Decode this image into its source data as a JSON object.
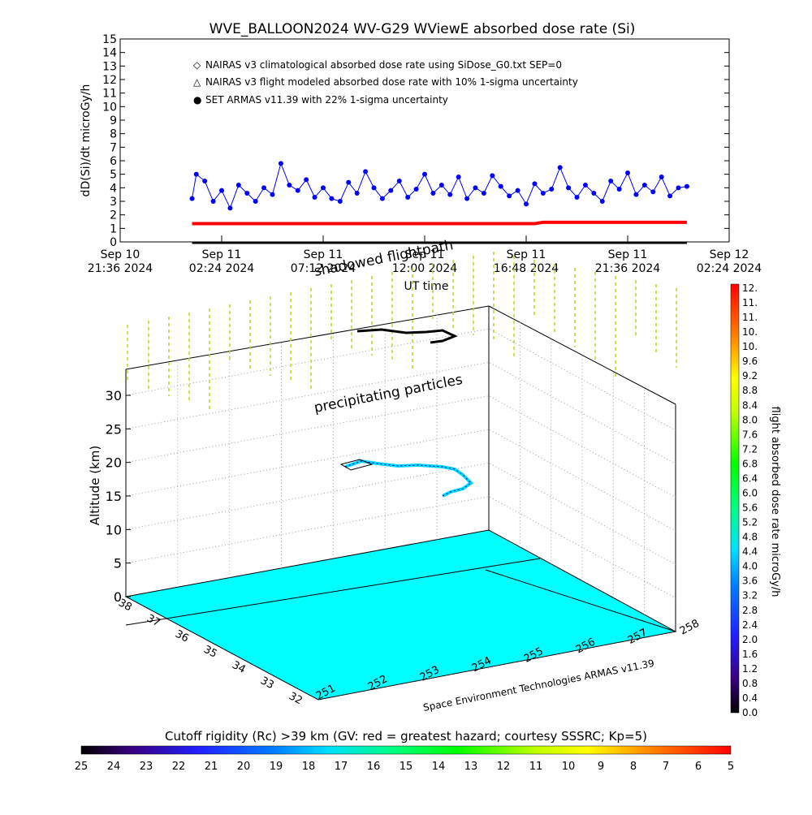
{
  "chart_data": [
    {
      "type": "scatter",
      "title": "WVE_BALLOON2024 WV-G29 WViewE absorbed dose rate (Si)",
      "xlabel": "UT time",
      "ylabel": "dD(Si)/dt microGy/h",
      "ylim": [
        0,
        15
      ],
      "yticks": [
        "0",
        "1",
        "2",
        "3",
        "4",
        "5",
        "6",
        "7",
        "8",
        "9",
        "10",
        "11",
        "12",
        "13",
        "14",
        "15"
      ],
      "xlim_hours_from_first_tick": [
        0,
        28.8
      ],
      "xticks": [
        {
          "line1": "Sep 10",
          "line2": "21:36 2024",
          "h": 0
        },
        {
          "line1": "Sep 11",
          "line2": "02:24 2024",
          "h": 4.8
        },
        {
          "line1": "Sep 11",
          "line2": "07:12 2024",
          "h": 9.6
        },
        {
          "line1": "Sep 11",
          "line2": "12:00 2024",
          "h": 14.4
        },
        {
          "line1": "Sep 11",
          "line2": "16:48 2024",
          "h": 19.2
        },
        {
          "line1": "Sep 11",
          "line2": "21:36 2024",
          "h": 24.0
        },
        {
          "line1": "Sep 12",
          "line2": "02:24 2024",
          "h": 28.8
        }
      ],
      "grid": false,
      "legend_position": "top-left",
      "legend": [
        {
          "symbol": "◇",
          "color": "#ff0000",
          "label": "NAIRAS v3 climatological absorbed dose rate using SiDose_G0.txt SEP=0"
        },
        {
          "symbol": "△",
          "color": "#000000",
          "label": "NAIRAS v3 flight modeled absorbed dose rate with 10% 1-sigma uncertainty"
        },
        {
          "symbol": "●",
          "color": "#0000ff",
          "label": "SET ARMAS v11.39 with 22% 1-sigma uncertainty"
        }
      ],
      "series": [
        {
          "name": "NAIRAS v3 climatological absorbed dose rate using SiDose_G0.txt SEP=0",
          "color": "#ff0000",
          "x": [
            3.4,
            6,
            9,
            12,
            15,
            18,
            19.6,
            20,
            21,
            24,
            26.8
          ],
          "y": [
            1.35,
            1.35,
            1.35,
            1.35,
            1.35,
            1.35,
            1.35,
            1.45,
            1.45,
            1.45,
            1.45
          ]
        },
        {
          "name": "NAIRAS v3 flight modeled absorbed dose rate with 10% 1-sigma uncertainty",
          "color": "#000000",
          "x": [
            3.4,
            26.8
          ],
          "y": [
            0,
            0
          ]
        },
        {
          "name": "SET ARMAS v11.39 with 22% 1-sigma uncertainty",
          "color": "#0000ff",
          "x": [
            3.4,
            3.6,
            4.0,
            4.4,
            4.8,
            5.2,
            5.6,
            6.0,
            6.4,
            6.8,
            7.2,
            7.6,
            8.0,
            8.4,
            8.8,
            9.2,
            9.6,
            10.0,
            10.4,
            10.8,
            11.2,
            11.6,
            12.0,
            12.4,
            12.8,
            13.2,
            13.6,
            14.0,
            14.4,
            14.8,
            15.2,
            15.6,
            16.0,
            16.4,
            16.8,
            17.2,
            17.6,
            18.0,
            18.4,
            18.8,
            19.2,
            19.6,
            20.0,
            20.4,
            20.8,
            21.2,
            21.6,
            22.0,
            22.4,
            22.8,
            23.2,
            23.6,
            24.0,
            24.4,
            24.8,
            25.2,
            25.6,
            26.0,
            26.4,
            26.8
          ],
          "y": [
            3.2,
            5.0,
            4.5,
            3.0,
            3.8,
            2.5,
            4.2,
            3.6,
            3.0,
            4.0,
            3.5,
            5.8,
            4.2,
            3.8,
            4.6,
            3.3,
            4.0,
            3.2,
            3.0,
            4.4,
            3.6,
            5.2,
            4.0,
            3.2,
            3.8,
            4.5,
            3.3,
            3.9,
            5.0,
            3.6,
            4.2,
            3.5,
            4.8,
            3.2,
            4.0,
            3.6,
            4.9,
            4.1,
            3.4,
            3.8,
            2.8,
            4.3,
            3.6,
            3.9,
            5.5,
            4.0,
            3.3,
            4.2,
            3.6,
            3.0,
            4.5,
            3.9,
            5.1,
            3.5,
            4.2,
            3.7,
            4.8,
            3.4,
            4.0,
            4.1
          ]
        }
      ],
      "annotations": [
        "shadowed flightpath"
      ]
    },
    {
      "type": "scatter",
      "ylabel": "Altitude (km)",
      "zlim": [
        0,
        30
      ],
      "zticks": [
        "0",
        "5",
        "10",
        "15",
        "20",
        "25",
        "30"
      ],
      "lat_ticks": [
        "38",
        "37",
        "36",
        "35",
        "34",
        "33",
        "32"
      ],
      "lon_ticks": [
        "251",
        "252",
        "253",
        "254",
        "255",
        "256",
        "257",
        "258"
      ],
      "annotations": [
        "precipitating particles"
      ],
      "credit": "Space Environment Technologies ARMAS v11.39",
      "colorbar_right": {
        "label": "flight absorbed dose rate microGy/h",
        "ticks": [
          "12.",
          "11.",
          "11.",
          "10.",
          "10.",
          "9.6",
          "9.2",
          "8.8",
          "8.4",
          "8.0",
          "7.6",
          "7.2",
          "6.8",
          "6.4",
          "6.0",
          "5.6",
          "5.2",
          "4.8",
          "4.4",
          "4.0",
          "3.6",
          "3.2",
          "2.8",
          "2.4",
          "2.0",
          "1.6",
          "1.2",
          "0.8",
          "0.4",
          "0.0"
        ]
      },
      "colorbar_bottom": {
        "label": "Cutoff rigidity (Rc) >39 km (GV: red = greatest hazard; courtesy SSSRC; Kp=5)",
        "ticks": [
          "25",
          "24",
          "23",
          "22",
          "21",
          "20",
          "19",
          "18",
          "17",
          "16",
          "15",
          "14",
          "13",
          "12",
          "11",
          "10",
          "9",
          "8",
          "7",
          "6",
          "5"
        ]
      }
    }
  ],
  "colors": {
    "surface": "#00ffff",
    "armas": "#0000ff",
    "nairas": "#ff0000",
    "grid": "#9a9a9a",
    "field_lines": "#b5d827"
  }
}
